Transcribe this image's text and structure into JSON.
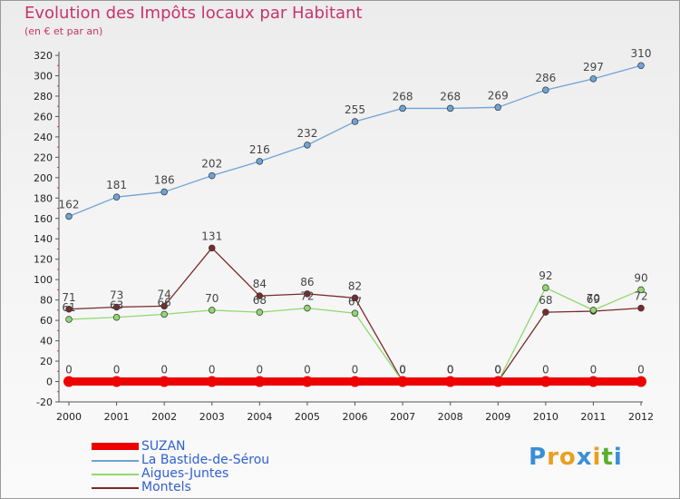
{
  "header": {
    "title": "Evolution des Impôts locaux par Habitant",
    "subtitle": "(en € et par an)"
  },
  "brand": {
    "letters": [
      "P",
      "r",
      "o",
      "x",
      "i",
      "t",
      "i"
    ],
    "colors": [
      "#3a8fd8",
      "#e8a020",
      "#e8a020",
      "#3a8fd8",
      "#e8a020",
      "#59b030",
      "#3a8fd8"
    ]
  },
  "chart_data": {
    "type": "line",
    "title": "Evolution des Impôts locaux par Habitant",
    "subtitle": "(en € et par an)",
    "xlabel": "",
    "ylabel": "",
    "x": [
      "2000",
      "2001",
      "2002",
      "2003",
      "2004",
      "2005",
      "2006",
      "2007",
      "2008",
      "2009",
      "2010",
      "2011",
      "2012"
    ],
    "ylim": [
      -20,
      320
    ],
    "yticks": [
      "-20",
      "0",
      "20",
      "40",
      "60",
      "80",
      "100",
      "120",
      "140",
      "160",
      "180",
      "200",
      "220",
      "240",
      "260",
      "280",
      "300",
      "320"
    ],
    "grid": false,
    "legend_position": "bottom-left",
    "series": [
      {
        "name": "SUZAN",
        "color": "#ee0000",
        "values": [
          0,
          0,
          0,
          0,
          0,
          0,
          0,
          0,
          0,
          0,
          0,
          0,
          0
        ],
        "labels": [
          "0",
          "0",
          "0",
          "0",
          "0",
          "0",
          "0",
          "0",
          "0",
          "0",
          "0",
          "0",
          "0"
        ]
      },
      {
        "name": "La Bastide-de-Sérou",
        "color": "#6fa3d8",
        "values": [
          162,
          181,
          186,
          202,
          216,
          232,
          255,
          268,
          268,
          269,
          286,
          297,
          310
        ],
        "labels": [
          "162",
          "181",
          "186",
          "202",
          "216",
          "232",
          "255",
          "268",
          "268",
          "269",
          "286",
          "297",
          "310"
        ]
      },
      {
        "name": "Aigues-Juntes",
        "color": "#90d870",
        "values": [
          61,
          63,
          66,
          70,
          68,
          72,
          67,
          0,
          0,
          0,
          92,
          70,
          90
        ],
        "labels": [
          "61",
          "63",
          "66",
          "70",
          "68",
          "72",
          "67",
          "0",
          "0",
          "0",
          "92",
          "70",
          "90"
        ]
      },
      {
        "name": "Montels",
        "color": "#7a2a2a",
        "values": [
          71,
          73,
          74,
          131,
          84,
          86,
          82,
          0,
          0,
          0,
          68,
          69,
          72
        ],
        "labels": [
          "71",
          "73",
          "74",
          "131",
          "84",
          "86",
          "82",
          "0",
          "0",
          "0",
          "68",
          "69",
          "72"
        ]
      }
    ]
  }
}
